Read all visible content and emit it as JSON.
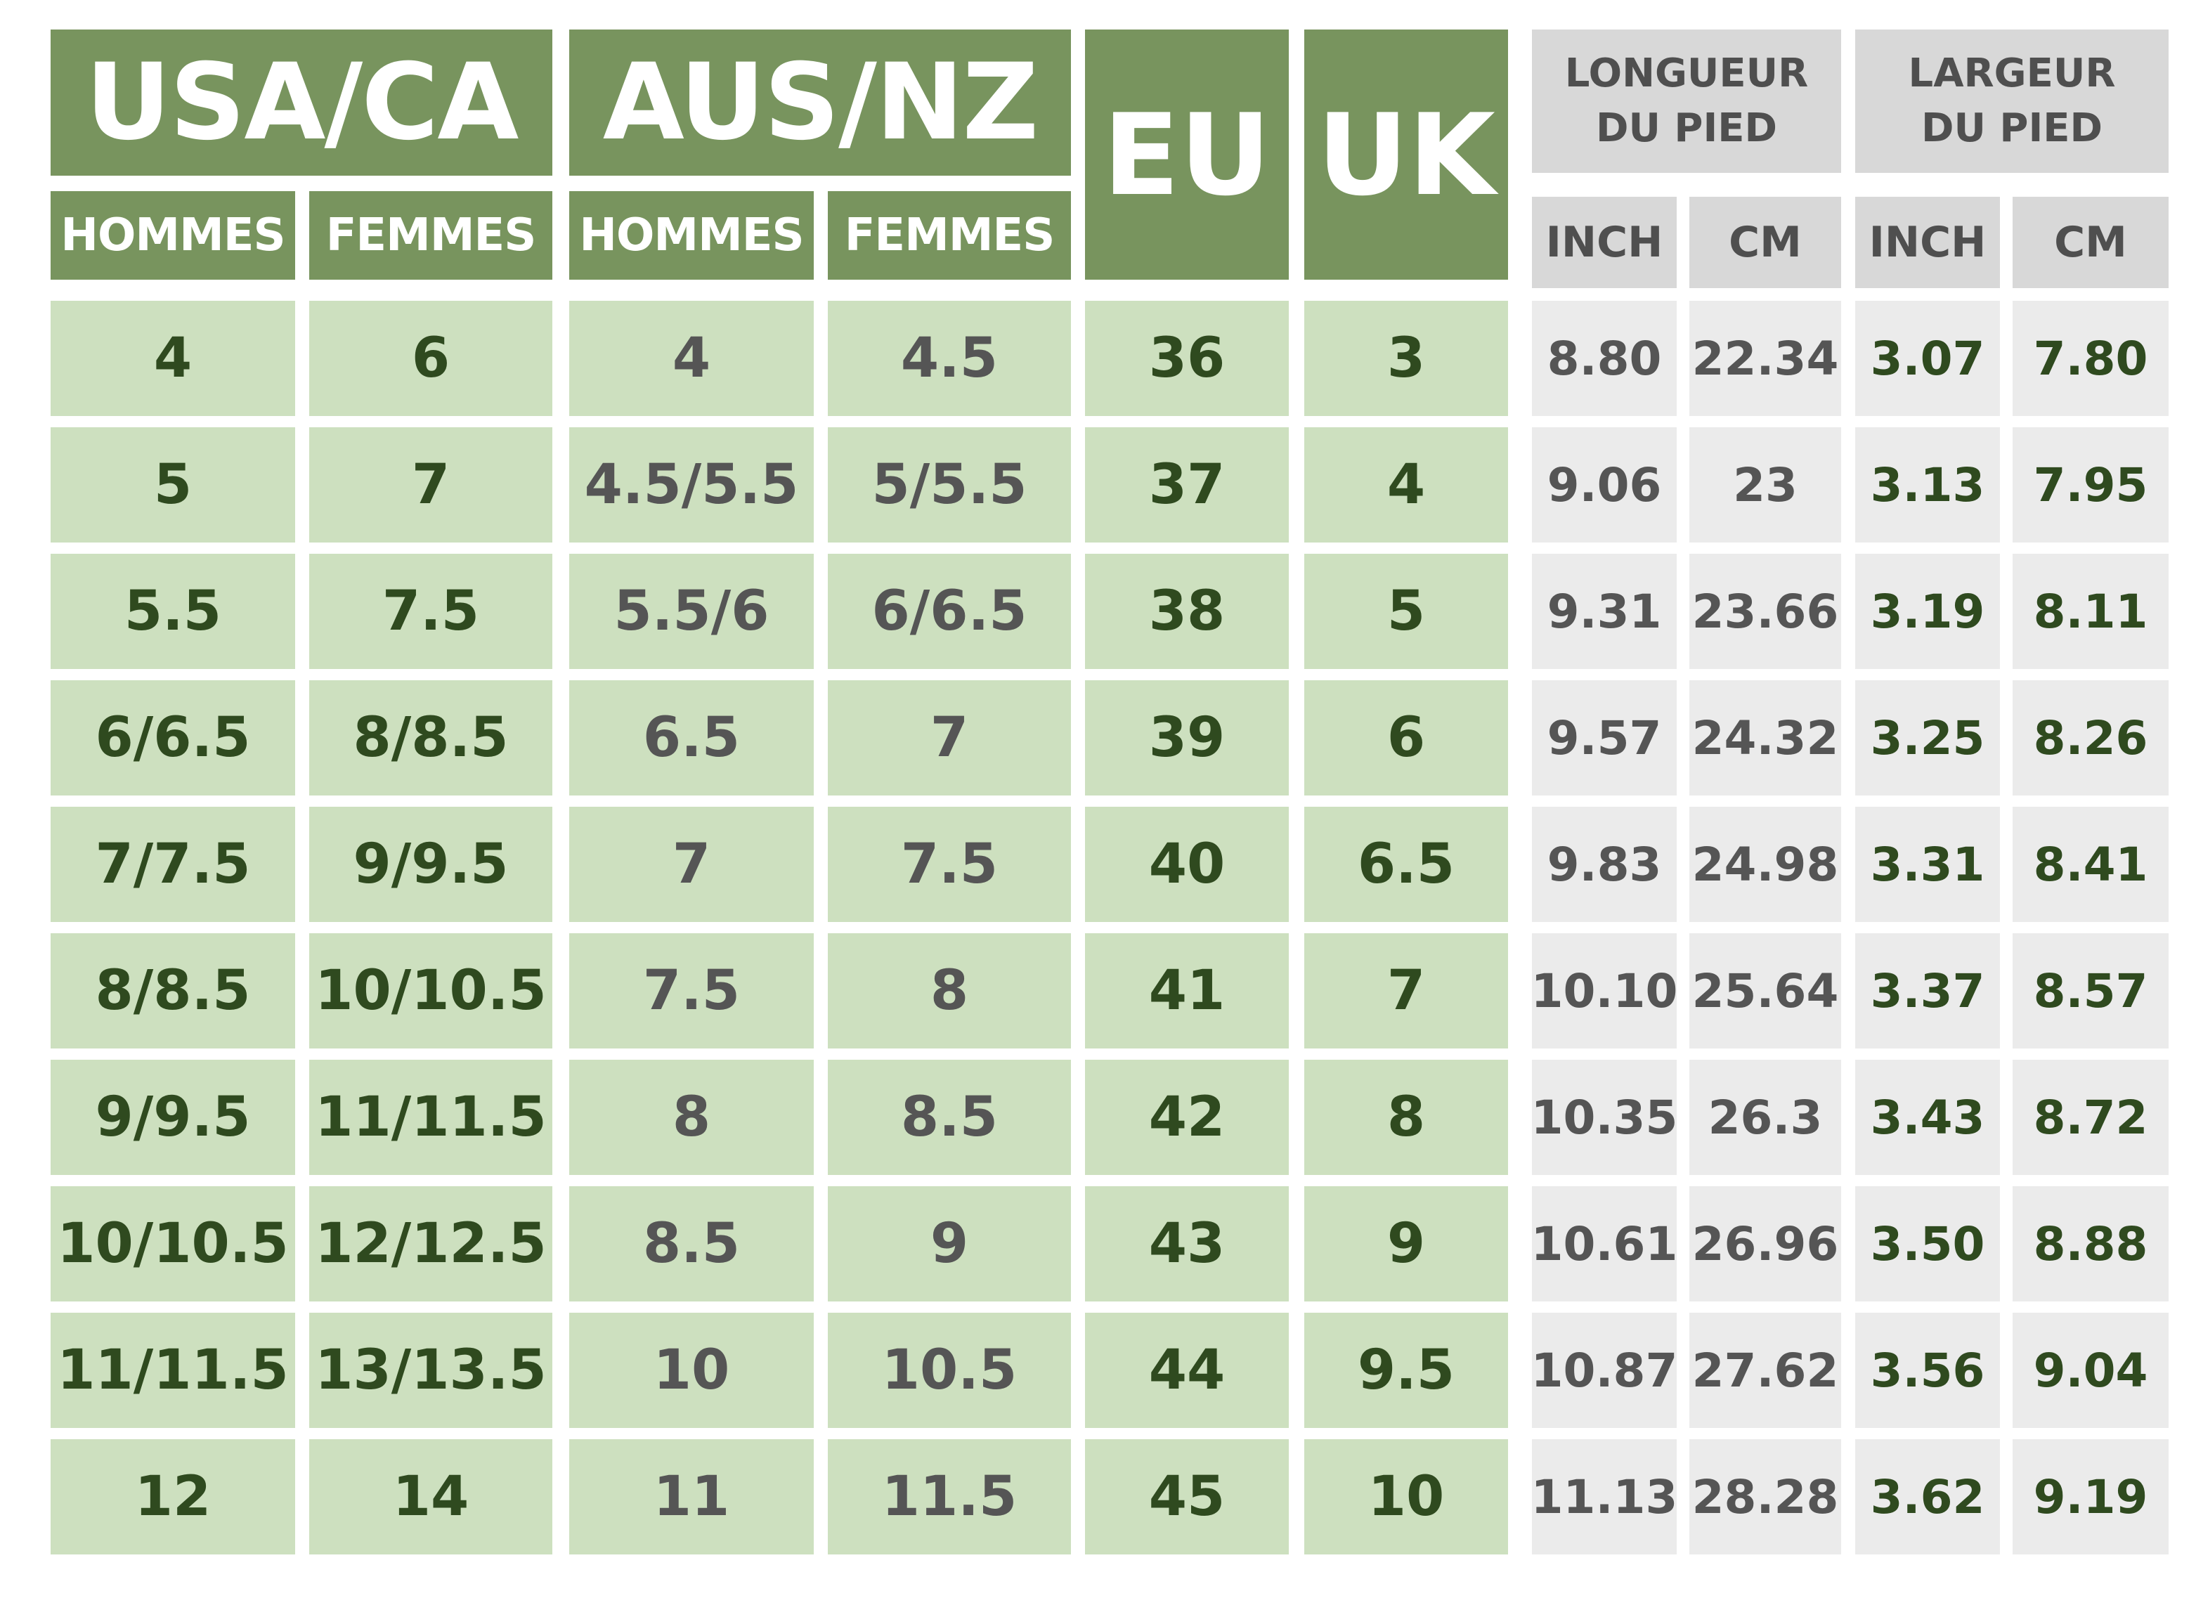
{
  "headers": {
    "usa_ca": "USA/CA",
    "aus_nz": "AUS/NZ",
    "eu": "EU",
    "uk": "UK",
    "longueur": "LONGUEUR DU PIED",
    "largeur": "LARGEUR DU PIED",
    "hommes": "HOMMES",
    "femmes": "FEMMES",
    "inch": "INCH",
    "cm": "CM"
  },
  "colors": {
    "header_green": "#78945e",
    "cell_green": "#cde0bf",
    "header_gray": "#d8d8d8",
    "cell_gray": "#ebebeb",
    "text_dark_green": "#2f4a1f",
    "text_gray": "#555555"
  },
  "rows": [
    {
      "usa_men": "4",
      "usa_women": "6",
      "aus_men": "4",
      "aus_women": "4.5",
      "eu": "36",
      "uk": "3",
      "len_inch": "8.80",
      "len_cm": "22.34",
      "wid_inch": "3.07",
      "wid_cm": "7.80"
    },
    {
      "usa_men": "5",
      "usa_women": "7",
      "aus_men": "4.5/5.5",
      "aus_women": "5/5.5",
      "eu": "37",
      "uk": "4",
      "len_inch": "9.06",
      "len_cm": "23",
      "wid_inch": "3.13",
      "wid_cm": "7.95"
    },
    {
      "usa_men": "5.5",
      "usa_women": "7.5",
      "aus_men": "5.5/6",
      "aus_women": "6/6.5",
      "eu": "38",
      "uk": "5",
      "len_inch": "9.31",
      "len_cm": "23.66",
      "wid_inch": "3.19",
      "wid_cm": "8.11"
    },
    {
      "usa_men": "6/6.5",
      "usa_women": "8/8.5",
      "aus_men": "6.5",
      "aus_women": "7",
      "eu": "39",
      "uk": "6",
      "len_inch": "9.57",
      "len_cm": "24.32",
      "wid_inch": "3.25",
      "wid_cm": "8.26"
    },
    {
      "usa_men": "7/7.5",
      "usa_women": "9/9.5",
      "aus_men": "7",
      "aus_women": "7.5",
      "eu": "40",
      "uk": "6.5",
      "len_inch": "9.83",
      "len_cm": "24.98",
      "wid_inch": "3.31",
      "wid_cm": "8.41"
    },
    {
      "usa_men": "8/8.5",
      "usa_women": "10/10.5",
      "aus_men": "7.5",
      "aus_women": "8",
      "eu": "41",
      "uk": "7",
      "len_inch": "10.10",
      "len_cm": "25.64",
      "wid_inch": "3.37",
      "wid_cm": "8.57"
    },
    {
      "usa_men": "9/9.5",
      "usa_women": "11/11.5",
      "aus_men": "8",
      "aus_women": "8.5",
      "eu": "42",
      "uk": "8",
      "len_inch": "10.35",
      "len_cm": "26.3",
      "wid_inch": "3.43",
      "wid_cm": "8.72"
    },
    {
      "usa_men": "10/10.5",
      "usa_women": "12/12.5",
      "aus_men": "8.5",
      "aus_women": "9",
      "eu": "43",
      "uk": "9",
      "len_inch": "10.61",
      "len_cm": "26.96",
      "wid_inch": "3.50",
      "wid_cm": "8.88"
    },
    {
      "usa_men": "11/11.5",
      "usa_women": "13/13.5",
      "aus_men": "10",
      "aus_women": "10.5",
      "eu": "44",
      "uk": "9.5",
      "len_inch": "10.87",
      "len_cm": "27.62",
      "wid_inch": "3.56",
      "wid_cm": "9.04"
    },
    {
      "usa_men": "12",
      "usa_women": "14",
      "aus_men": "11",
      "aus_women": "11.5",
      "eu": "45",
      "uk": "10",
      "len_inch": "11.13",
      "len_cm": "28.28",
      "wid_inch": "3.62",
      "wid_cm": "9.19"
    }
  ]
}
